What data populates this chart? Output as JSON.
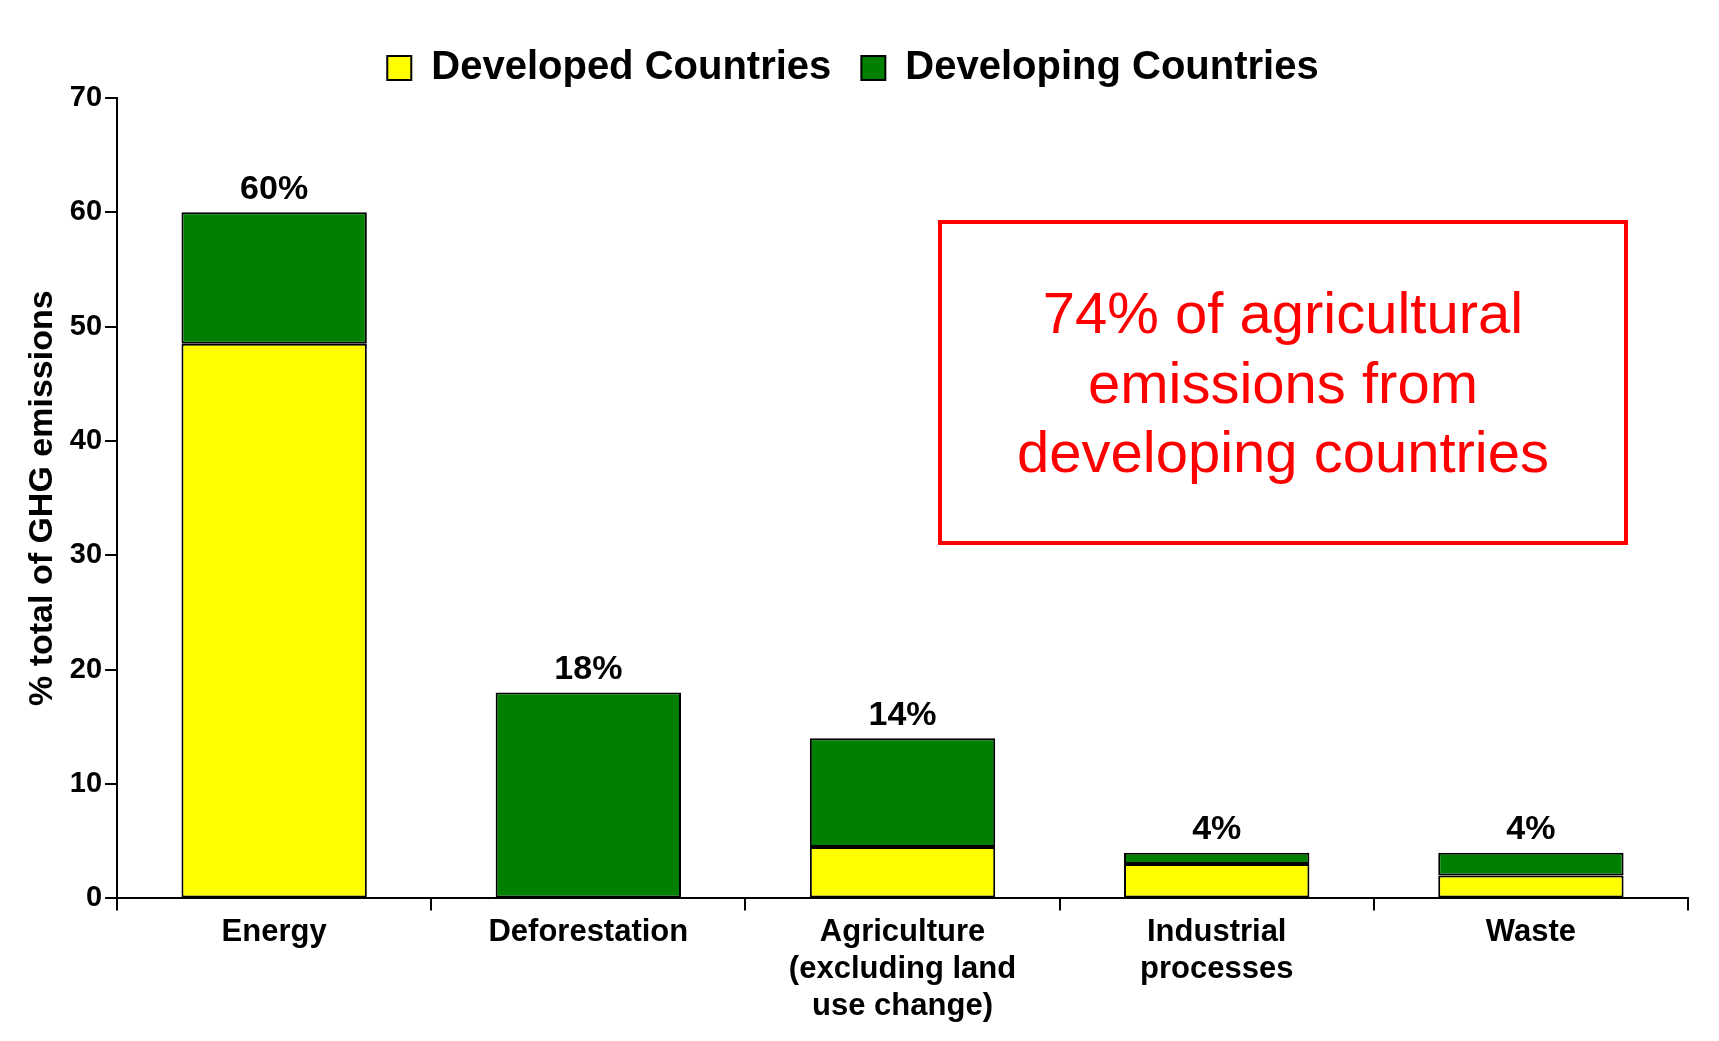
{
  "chart_data": {
    "type": "bar",
    "stacked": true,
    "ylabel": "% total of GHG emissions",
    "categories": [
      "Energy",
      "Deforestation",
      "Agriculture (excluding land use change)",
      "Industrial processes",
      "Waste"
    ],
    "series": [
      {
        "name": "Developed Countries",
        "color": "#ffff00",
        "values": [
          48.5,
          0,
          4.5,
          3,
          2
        ]
      },
      {
        "name": "Developing Countries",
        "color": "#008000",
        "values": [
          11.5,
          18,
          9.5,
          1,
          2
        ]
      }
    ],
    "totals": [
      "60%",
      "18%",
      "14%",
      "4%",
      "4%"
    ],
    "ylim": [
      0,
      70
    ],
    "yticks": [
      0,
      10,
      20,
      30,
      40,
      50,
      60,
      70
    ],
    "grid": false,
    "legend": "top",
    "annotations": [
      "74% of agricultural emissions from developing countries"
    ]
  }
}
